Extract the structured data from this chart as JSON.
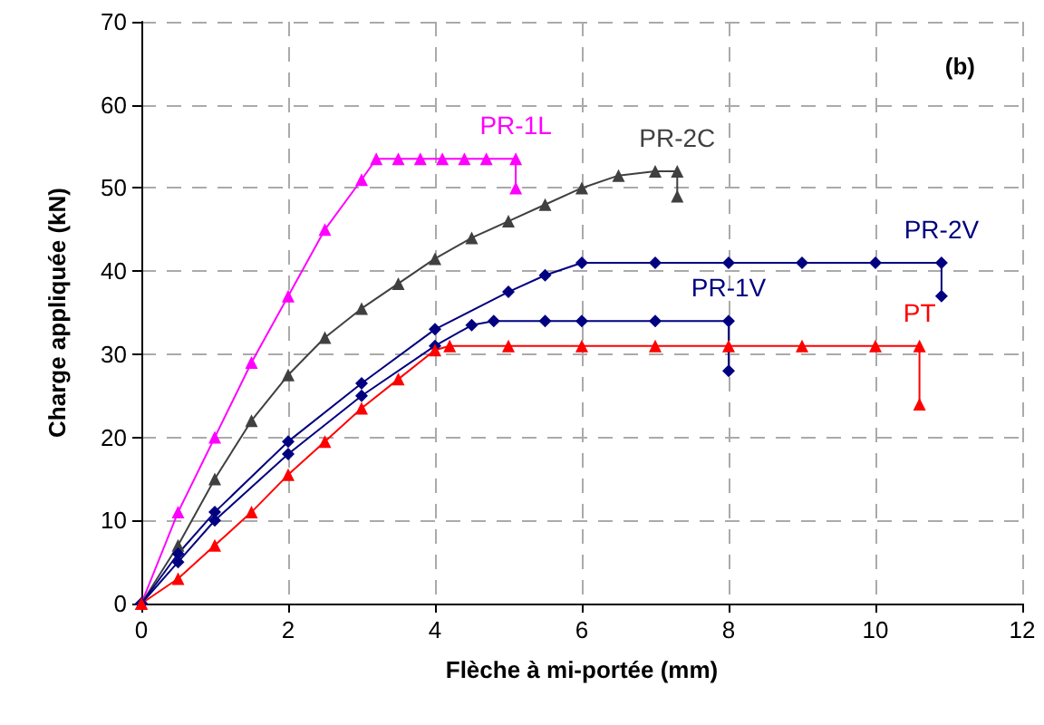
{
  "chart_data": {
    "type": "line",
    "xlabel": "Flèche à mi-portée (mm)",
    "ylabel": "Charge appliquée (kN)",
    "annotations": [
      "(b)"
    ],
    "xlim": [
      0,
      12
    ],
    "xticks": [
      0,
      2,
      4,
      6,
      8,
      10,
      12
    ],
    "ylim": [
      0,
      70
    ],
    "yticks": [
      0,
      10,
      20,
      30,
      40,
      50,
      60,
      70
    ],
    "grid": true,
    "legend": false,
    "line_style": "solid",
    "series": [
      {
        "name": "PR-1L",
        "color": "#ff00ff",
        "marker": "triangle",
        "x": [
          0,
          0.5,
          1,
          1.5,
          2,
          2.5,
          3,
          3.2,
          3.5,
          3.8,
          4.1,
          4.4,
          4.7,
          5.1,
          5.1
        ],
        "values": [
          0,
          11,
          20,
          29,
          37,
          45,
          51,
          53.5,
          53.5,
          53.5,
          53.5,
          53.5,
          53.5,
          53.5,
          50
        ]
      },
      {
        "name": "PR-2C",
        "color": "#404040",
        "marker": "triangle",
        "x": [
          0,
          0.5,
          1,
          1.5,
          2,
          2.5,
          3,
          3.5,
          4,
          4.5,
          5,
          5.5,
          6,
          6.5,
          7,
          7.3,
          7.3
        ],
        "values": [
          0,
          7,
          15,
          22,
          27.5,
          32,
          35.5,
          38.5,
          41.5,
          44,
          46,
          48,
          50,
          51.5,
          52,
          52,
          49
        ]
      },
      {
        "name": "PR-2V",
        "color": "#000080",
        "marker": "diamond",
        "x": [
          0,
          0.5,
          1,
          2,
          3,
          4,
          5,
          5.5,
          6,
          7,
          8,
          9,
          10,
          10.9,
          10.9
        ],
        "values": [
          0,
          6,
          11,
          19.5,
          26.5,
          33,
          37.5,
          39.5,
          41,
          41,
          41,
          41,
          41,
          41,
          37
        ]
      },
      {
        "name": "PR-1V",
        "color": "#000080",
        "marker": "diamond",
        "x": [
          0,
          0.5,
          1,
          2,
          3,
          4,
          4.5,
          4.8,
          5.5,
          6,
          7,
          8,
          8
        ],
        "values": [
          0,
          5,
          10,
          18,
          25,
          31,
          33.5,
          34,
          34,
          34,
          34,
          34,
          28
        ]
      },
      {
        "name": "PT",
        "color": "#ff0000",
        "marker": "triangle",
        "x": [
          0,
          0.5,
          1,
          1.5,
          2,
          2.5,
          3,
          3.5,
          4,
          4.2,
          5,
          6,
          7,
          8,
          9,
          10,
          10.6,
          10.6
        ],
        "values": [
          0,
          3,
          7,
          11,
          15.5,
          19.5,
          23.5,
          27,
          30.5,
          31,
          31,
          31,
          31,
          31,
          31,
          31,
          31,
          24
        ]
      }
    ]
  }
}
